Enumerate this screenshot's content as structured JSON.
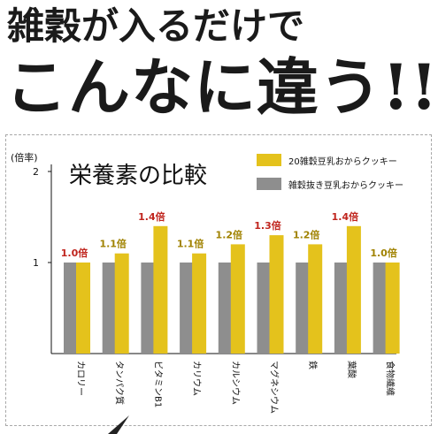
{
  "header": {
    "line1": "雑穀が入るだけで",
    "line2": "こんなに違う!!"
  },
  "chart_data": {
    "type": "bar",
    "title": "栄養素の比較",
    "ylabel": "(倍率)",
    "ylim": [
      0,
      2
    ],
    "yticks": [
      "1",
      "2"
    ],
    "grid": false,
    "legend_position": "top-right",
    "categories": [
      "カロリー",
      "タンパク質",
      "ビタミンB1",
      "カリウム",
      "カルシウム",
      "マグネシウム",
      "鉄",
      "葉酸",
      "食物繊維"
    ],
    "series": [
      {
        "name": "雑穀抜き豆乳おからクッキー",
        "color": "#8e8e8e",
        "values": [
          1,
          1,
          1,
          1,
          1,
          1,
          1,
          1,
          1
        ]
      },
      {
        "name": "20雑穀豆乳おからクッキー",
        "color": "#e4c21c",
        "values": [
          1.0,
          1.1,
          1.4,
          1.1,
          1.2,
          1.3,
          1.2,
          1.4,
          1.0
        ],
        "labels": [
          "1.0倍",
          "1.1倍",
          "1.4倍",
          "1.1倍",
          "1.2倍",
          "1.3倍",
          "1.2倍",
          "1.4倍",
          "1.0倍"
        ],
        "label_colors": [
          "#c0251e",
          "#a08200",
          "#c0251e",
          "#a08200",
          "#a08200",
          "#c0251e",
          "#a08200",
          "#c0251e",
          "#a08200"
        ]
      }
    ]
  }
}
